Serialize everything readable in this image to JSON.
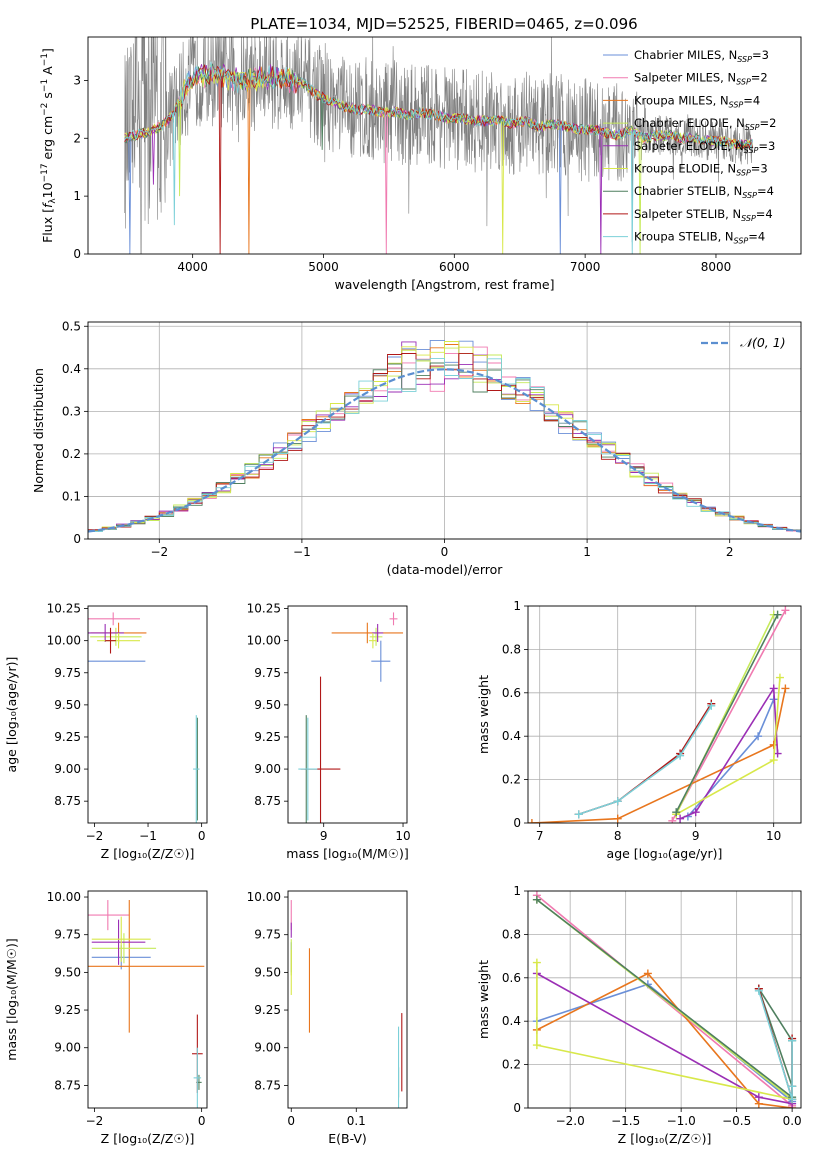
{
  "figure_title": "PLATE=1034, MJD=52525, FIBERID=0465, z=0.096",
  "colors": {
    "Chabrier MILES": "#6a8fd8",
    "Salpeter MILES": "#f07ab0",
    "Kroupa MILES": "#e8761e",
    "Chabrier ELODIE": "#c6ea5a",
    "Salpeter ELODIE": "#9b2fb5",
    "Kroupa ELODIE": "#d8e84a",
    "Chabrier STELIB": "#4f7f5f",
    "Salpeter STELIB": "#b01818",
    "Kroupa STELIB": "#7cd0d8",
    "data": "#808080",
    "gauss": "#5b8fd0"
  },
  "chart_data": [
    {
      "id": "spectrum",
      "type": "line",
      "title": "PLATE=1034, MJD=52525, FIBERID=0465, z=0.096",
      "xlabel": "wavelength [Angstrom, rest frame]",
      "ylabel_parts": [
        "Flux [",
        "f",
        "λ",
        "10",
        "−17",
        " erg cm",
        "−2",
        " s",
        "−1",
        " A",
        "−1",
        "]"
      ],
      "xlim": [
        3200,
        8650
      ],
      "ylim": [
        0,
        3.75
      ],
      "xticks": [
        4000,
        5000,
        6000,
        7000,
        8000
      ],
      "yticks": [
        0,
        1,
        2,
        3
      ],
      "legend_position": "right",
      "legend": [
        {
          "label": "Chabrier MILES, N",
          "sub": "SSP",
          "value": "=3"
        },
        {
          "label": "Salpeter MILES, N",
          "sub": "SSP",
          "value": "=2"
        },
        {
          "label": "Kroupa MILES, N",
          "sub": "SSP",
          "value": "=4"
        },
        {
          "label": "Chabrier ELODIE, N",
          "sub": "SSP",
          "value": "=2"
        },
        {
          "label": "Salpeter ELODIE, N",
          "sub": "SSP",
          "value": "=3"
        },
        {
          "label": "Kroupa ELODIE, N",
          "sub": "SSP",
          "value": "=3"
        },
        {
          "label": "Chabrier STELIB, N",
          "sub": "SSP",
          "value": "=4"
        },
        {
          "label": "Salpeter STELIB, N",
          "sub": "SSP",
          "value": "=4"
        },
        {
          "label": "Kroupa STELIB, N",
          "sub": "SSP",
          "value": "=4"
        }
      ],
      "model_flux_x": [
        3480,
        3550,
        3650,
        3750,
        3850,
        3950,
        4050,
        4150,
        4250,
        4350,
        4450,
        4550,
        4650,
        4750,
        4850,
        4950,
        5050,
        5150,
        5250,
        5350,
        5450,
        5550,
        5650,
        5750,
        5850,
        5950,
        6050,
        6150,
        6250,
        6350,
        6450,
        6550,
        6650,
        6750,
        6850,
        6950,
        7050,
        7150,
        7250,
        7350,
        7450,
        7550,
        7650,
        7750,
        7850,
        7950,
        8050,
        8150,
        8250
      ],
      "model_flux_y": [
        2.0,
        2.05,
        2.1,
        2.2,
        2.4,
        2.9,
        3.1,
        3.1,
        3.05,
        3.0,
        3.0,
        3.05,
        3.05,
        3.0,
        2.95,
        2.75,
        2.65,
        2.55,
        2.5,
        2.5,
        2.45,
        2.45,
        2.4,
        2.45,
        2.4,
        2.35,
        2.35,
        2.3,
        2.3,
        2.3,
        2.25,
        2.3,
        2.2,
        2.25,
        2.2,
        2.15,
        2.15,
        2.1,
        2.05,
        2.15,
        2.0,
        2.05,
        2.05,
        2.0,
        2.0,
        1.95,
        1.95,
        1.9,
        1.9
      ],
      "absorption_dips": [
        [
          3520,
          0.0
        ],
        [
          3700,
          1.2
        ],
        [
          3860,
          0.5
        ],
        [
          3900,
          1.0
        ],
        [
          4210,
          0.0
        ],
        [
          4430,
          0.0
        ],
        [
          4990,
          1.8
        ],
        [
          5480,
          0.0
        ],
        [
          6370,
          0.0
        ],
        [
          6810,
          0.0
        ],
        [
          7120,
          0.0
        ],
        [
          7360,
          0.0
        ],
        [
          7420,
          0.0
        ]
      ]
    },
    {
      "id": "residuals",
      "type": "step-histogram",
      "xlabel": "(data-model)/error",
      "ylabel": "Normed distribution",
      "xlim": [
        -2.5,
        2.5
      ],
      "ylim": [
        0,
        0.51
      ],
      "xticks": [
        -2,
        -1,
        0,
        1,
        2
      ],
      "yticks": [
        0.0,
        0.1,
        0.2,
        0.3,
        0.4,
        0.5
      ],
      "bin_width": 0.1,
      "grid": true,
      "legend_position": "top-right",
      "gauss_label": "𝒩(0, 1)",
      "gauss_mean": 0,
      "gauss_sigma": 1
    },
    {
      "id": "age-vs-Z",
      "type": "errorbar",
      "xlabel": "Z [log₁₀(Z/Z☉)]",
      "ylabel": "age  [log₁₀(age/yr)]",
      "xlim": [
        -2.12,
        0.1
      ],
      "ylim": [
        8.58,
        10.27
      ],
      "xticks": [
        -2,
        -1,
        0
      ],
      "yticks": [
        8.75,
        9.0,
        9.25,
        9.5,
        9.75,
        10.0,
        10.25
      ],
      "ytick_labels": [
        "8.75",
        "9.00",
        "9.25",
        "9.50",
        "9.75",
        "10.00",
        "10.25"
      ],
      "points": [
        {
          "m": "Chabrier MILES",
          "x": -1.6,
          "xerr": 0.55,
          "y": 9.84,
          "yerr": 0.0
        },
        {
          "m": "Salpeter MILES",
          "x": -1.65,
          "xerr": 0.5,
          "y": 10.17,
          "yerr": 0.05
        },
        {
          "m": "Kroupa MILES",
          "x": -1.55,
          "xerr": 0.52,
          "y": 10.06,
          "yerr": 0.08
        },
        {
          "m": "Chabrier ELODIE",
          "x": -1.6,
          "xerr": 0.48,
          "y": 10.03,
          "yerr": 0.07
        },
        {
          "m": "Salpeter ELODIE",
          "x": -1.8,
          "xerr": 0.35,
          "y": 10.06,
          "yerr": 0.07
        },
        {
          "m": "Kroupa ELODIE",
          "x": -1.55,
          "xerr": 0.4,
          "y": 10.0,
          "yerr": 0.06
        },
        {
          "m": "Chabrier STELIB",
          "x": -0.08,
          "xerr": 0.02,
          "y": 9.0,
          "yerr": 0.4
        },
        {
          "m": "Salpeter STELIB",
          "x": -1.7,
          "xerr": 0.1,
          "y": 10.0,
          "yerr": 0.1
        },
        {
          "m": "Kroupa STELIB",
          "x": -0.1,
          "xerr": 0.06,
          "y": 9.0,
          "yerr": 0.42
        }
      ]
    },
    {
      "id": "age-vs-mass",
      "type": "errorbar",
      "xlabel": "mass [log₁₀(M/M☉)]",
      "ylabel": "",
      "xlim": [
        8.55,
        10.05
      ],
      "ylim": [
        8.58,
        10.27
      ],
      "xticks": [
        9,
        10
      ],
      "yticks": [
        8.75,
        9.0,
        9.25,
        9.5,
        9.75,
        10.0,
        10.25
      ],
      "ytick_labels": [
        "8.75",
        "9.00",
        "9.25",
        "9.50",
        "9.75",
        "10.00",
        "10.25"
      ],
      "points": [
        {
          "m": "Chabrier MILES",
          "x": 9.72,
          "xerr": 0.12,
          "y": 9.84,
          "yerr": 0.16
        },
        {
          "m": "Salpeter MILES",
          "x": 9.88,
          "xerr": 0.05,
          "y": 10.17,
          "yerr": 0.05
        },
        {
          "m": "Kroupa MILES",
          "x": 9.55,
          "xerr": 0.45,
          "y": 10.06,
          "yerr": 0.08
        },
        {
          "m": "Chabrier ELODIE",
          "x": 9.66,
          "xerr": 0.08,
          "y": 10.03,
          "yerr": 0.07
        },
        {
          "m": "Salpeter ELODIE",
          "x": 9.68,
          "xerr": 0.07,
          "y": 10.06,
          "yerr": 0.07
        },
        {
          "m": "Kroupa ELODIE",
          "x": 9.62,
          "xerr": 0.05,
          "y": 10.0,
          "yerr": 0.06
        },
        {
          "m": "Chabrier STELIB",
          "x": 8.78,
          "xerr": 0.02,
          "y": 9.0,
          "yerr": 0.42
        },
        {
          "m": "Salpeter STELIB",
          "x": 8.96,
          "xerr": 0.25,
          "y": 9.0,
          "yerr": 0.72
        },
        {
          "m": "Kroupa STELIB",
          "x": 8.8,
          "xerr": 0.12,
          "y": 9.0,
          "yerr": 0.4
        }
      ]
    },
    {
      "id": "weight-vs-age",
      "type": "line",
      "xlabel": "age  [log₁₀(age/yr)]",
      "ylabel": "mass weight",
      "xlim": [
        6.85,
        10.35
      ],
      "ylim": [
        0,
        1.0
      ],
      "xticks": [
        7,
        8,
        9,
        10
      ],
      "yticks": [
        0.0,
        0.2,
        0.4,
        0.6,
        0.8,
        1.0
      ],
      "grid": true,
      "series": [
        {
          "m": "Chabrier MILES",
          "x": [
            8.9,
            9.8,
            10.0
          ],
          "y": [
            0.03,
            0.4,
            0.57
          ]
        },
        {
          "m": "Salpeter MILES",
          "x": [
            8.7,
            10.15
          ],
          "y": [
            0.01,
            0.98
          ]
        },
        {
          "m": "Kroupa MILES",
          "x": [
            6.9,
            8.0,
            10.0,
            10.15
          ],
          "y": [
            0.0,
            0.02,
            0.36,
            0.62
          ]
        },
        {
          "m": "Chabrier ELODIE",
          "x": [
            8.75,
            10.0
          ],
          "y": [
            0.04,
            0.96
          ]
        },
        {
          "m": "Salpeter ELODIE",
          "x": [
            8.8,
            9.0,
            10.0,
            10.05
          ],
          "y": [
            0.02,
            0.05,
            0.62,
            0.32
          ]
        },
        {
          "m": "Kroupa ELODIE",
          "x": [
            8.75,
            10.0,
            10.08
          ],
          "y": [
            0.04,
            0.29,
            0.67
          ]
        },
        {
          "m": "Chabrier STELIB",
          "x": [
            8.75,
            10.05
          ],
          "y": [
            0.05,
            0.96
          ]
        },
        {
          "m": "Salpeter STELIB",
          "x": [
            7.5,
            8.0,
            8.8,
            9.2
          ],
          "y": [
            0.04,
            0.1,
            0.32,
            0.55
          ]
        },
        {
          "m": "Kroupa STELIB",
          "x": [
            7.5,
            8.0,
            8.8,
            9.2
          ],
          "y": [
            0.04,
            0.1,
            0.31,
            0.54
          ]
        }
      ]
    },
    {
      "id": "mass-vs-Z",
      "type": "errorbar",
      "xlabel": "Z [log₁₀(Z/Z☉)]",
      "ylabel": "mass [log₁₀(M/M☉)]",
      "xlim": [
        -2.12,
        0.1
      ],
      "ylim": [
        8.6,
        10.04
      ],
      "xticks": [
        -2,
        0
      ],
      "yticks": [
        8.75,
        9.0,
        9.25,
        9.5,
        9.75,
        10.0
      ],
      "ytick_labels": [
        "8.75",
        "9.00",
        "9.25",
        "9.50",
        "9.75",
        "10.00"
      ],
      "points": [
        {
          "m": "Chabrier MILES",
          "x": -1.5,
          "xerr": 0.55,
          "y": 9.6,
          "yerr": 0.08
        },
        {
          "m": "Salpeter MILES",
          "x": -1.75,
          "xerr": 0.4,
          "y": 9.88,
          "yerr": 0.1
        },
        {
          "m": "Kroupa MILES",
          "x": -1.35,
          "xerr": 1.4,
          "y": 9.54,
          "yerr": 0.44
        },
        {
          "m": "Chabrier ELODIE",
          "x": -1.45,
          "xerr": 0.6,
          "y": 9.66,
          "yerr": 0.1
        },
        {
          "m": "Salpeter ELODIE",
          "x": -1.55,
          "xerr": 0.5,
          "y": 9.7,
          "yerr": 0.15
        },
        {
          "m": "Kroupa ELODIE",
          "x": -1.5,
          "xerr": 0.55,
          "y": 9.72,
          "yerr": 0.15
        },
        {
          "m": "Chabrier STELIB",
          "x": -0.05,
          "xerr": 0.05,
          "y": 8.77,
          "yerr": 0.05
        },
        {
          "m": "Salpeter STELIB",
          "x": -0.08,
          "xerr": 0.1,
          "y": 8.96,
          "yerr": 0.26
        },
        {
          "m": "Kroupa STELIB",
          "x": -0.08,
          "xerr": 0.07,
          "y": 8.8,
          "yerr": 0.2
        }
      ]
    },
    {
      "id": "mass-vs-EBV",
      "type": "errorbar",
      "xlabel": "E(B-V)",
      "ylabel": "",
      "xlim": [
        -0.005,
        0.178
      ],
      "ylim": [
        8.6,
        10.04
      ],
      "xticks": [
        0.0,
        0.1
      ],
      "yticks": [
        8.75,
        9.0,
        9.25,
        9.5,
        9.75,
        10.0
      ],
      "ytick_labels": [
        "8.75",
        "9.00",
        "9.25",
        "9.50",
        "9.75",
        "10.00"
      ],
      "points": [
        {
          "m": "Chabrier MILES",
          "x": 0.0,
          "xerr": 0.0,
          "y": 9.6,
          "yerr": 0.1
        },
        {
          "m": "Salpeter MILES",
          "x": 0.0,
          "xerr": 0.0,
          "y": 9.88,
          "yerr": 0.1
        },
        {
          "m": "Kroupa MILES",
          "x": 0.028,
          "xerr": 0.0,
          "y": 9.38,
          "yerr": 0.28
        },
        {
          "m": "Chabrier ELODIE",
          "x": 0.0,
          "xerr": 0.0,
          "y": 9.6,
          "yerr": 0.12
        },
        {
          "m": "Salpeter ELODIE",
          "x": 0.0,
          "xerr": 0.0,
          "y": 9.78,
          "yerr": 0.05
        },
        {
          "m": "Kroupa ELODIE",
          "x": 0.0,
          "xerr": 0.0,
          "y": 9.5,
          "yerr": 0.15
        },
        {
          "m": "Chabrier STELIB",
          "x": 0.165,
          "xerr": 0.0,
          "y": 8.77,
          "yerr": 0.1
        },
        {
          "m": "Salpeter STELIB",
          "x": 0.17,
          "xerr": 0.0,
          "y": 8.97,
          "yerr": 0.26
        },
        {
          "m": "Kroupa STELIB",
          "x": 0.165,
          "xerr": 0.0,
          "y": 8.82,
          "yerr": 0.32
        }
      ]
    },
    {
      "id": "weight-vs-Z",
      "type": "line",
      "xlabel": "Z [log₁₀(Z/Z☉)]",
      "ylabel": "mass weight",
      "xlim": [
        -2.38,
        0.08
      ],
      "ylim": [
        0,
        1.0
      ],
      "xticks": [
        -2.0,
        -1.5,
        -1.0,
        -0.5,
        0.0
      ],
      "xtick_labels": [
        "−2.0",
        "−1.5",
        "−1.0",
        "−0.5",
        "0.0"
      ],
      "yticks": [
        0.0,
        0.2,
        0.4,
        0.6,
        0.8,
        1.0
      ],
      "grid": true,
      "series": [
        {
          "m": "Chabrier MILES",
          "x": [
            -2.3,
            -1.3,
            0.0
          ],
          "y": [
            0.4,
            0.57,
            0.03
          ]
        },
        {
          "m": "Salpeter MILES",
          "x": [
            -2.3,
            0.0
          ],
          "y": [
            0.98,
            0.01
          ]
        },
        {
          "m": "Kroupa MILES",
          "x": [
            -2.3,
            -1.3,
            -0.3,
            0.0
          ],
          "y": [
            0.36,
            0.62,
            0.02,
            0.0
          ]
        },
        {
          "m": "Chabrier ELODIE",
          "x": [
            -2.3,
            0.0
          ],
          "y": [
            0.96,
            0.04
          ]
        },
        {
          "m": "Salpeter ELODIE",
          "x": [
            -2.3,
            -0.3,
            0.0
          ],
          "y": [
            0.62,
            0.05,
            0.02
          ]
        },
        {
          "m": "Kroupa ELODIE",
          "x": [
            -2.3,
            -2.3,
            0.0
          ],
          "y": [
            0.67,
            0.29,
            0.04
          ]
        },
        {
          "m": "Chabrier STELIB",
          "x": [
            -2.3,
            0.0,
            0.0,
            -0.3,
            0.0
          ],
          "y": [
            0.96,
            0.05,
            0.31,
            0.55,
            0.1
          ]
        },
        {
          "m": "Salpeter STELIB",
          "x": [
            -0.3,
            0.0,
            0.0,
            0.0
          ],
          "y": [
            0.55,
            0.04,
            0.32,
            0.1
          ]
        },
        {
          "m": "Kroupa STELIB",
          "x": [
            -0.3,
            0.0,
            0.0,
            0.0
          ],
          "y": [
            0.54,
            0.04,
            0.31,
            0.1
          ]
        }
      ]
    }
  ]
}
